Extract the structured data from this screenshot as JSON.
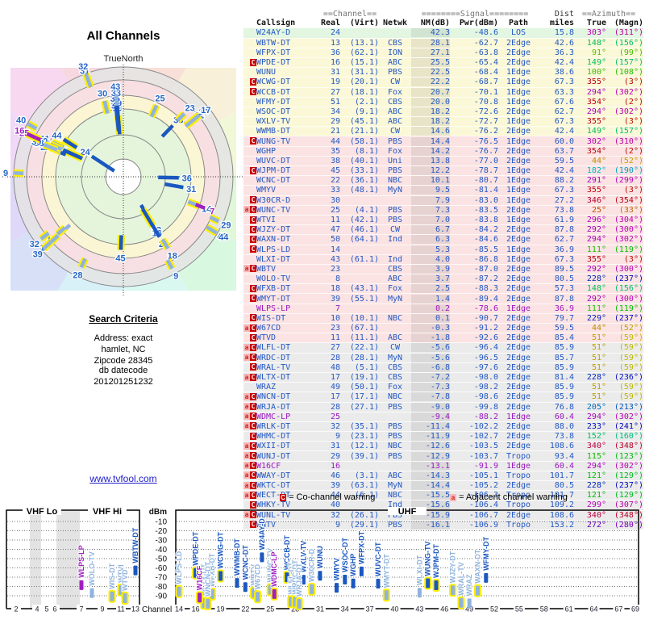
{
  "ui": {
    "polar_title": "All Channels",
    "north_label": "TrueNorth",
    "search": {
      "heading": "Search Criteria",
      "line1": "Address: exact",
      "line2": "hamlet, NC",
      "line3": "Zipcode 28345",
      "db_label": "db datecode",
      "db_value": "201201251232"
    },
    "link_text": "www.tvfool.com",
    "legend": {
      "co_badge": "C",
      "co_text": "= Co-channel warning",
      "adj_badge": "a",
      "adj_text": "= Adjacent channel warning"
    },
    "table_header": {
      "group_channel": "==Channel==",
      "group_signal": "========Signal========",
      "group_dist": "Dist",
      "group_azimuth": "==Azimuth==",
      "callsign": "Callsign",
      "real": "Real",
      "virt": "(Virt)",
      "netwk": "Netwk",
      "nm": "NM(dB)",
      "pwr": "Pwr(dBm)",
      "path": "Path",
      "miles": "miles",
      "true": "True",
      "magn": "(Magn)"
    },
    "colors": {
      "digital_text": "#2358c4",
      "analog_text": "#9a17c0",
      "zone_green": "#e2f6e2",
      "zone_yellow": "#fbf8d8",
      "zone_pink": "#fbe3e3",
      "zone_gray": "#ebebeb",
      "bar_strong": "#1a57c0",
      "bar_weak": "#8fb3dd",
      "bar_analog": "#a020c0",
      "warning_halo": "#ffee00",
      "badge_red": "#cc0000"
    }
  },
  "chart_data": {
    "type": "table",
    "title": "All Channels",
    "description": "TV reception report: polar plot of all channels, station table, and VHF/UHF signal-level charts",
    "columns": [
      "Callsign",
      "RealCh",
      "VirtCh",
      "Netwk",
      "NM_dB",
      "Pwr_dBm",
      "Path",
      "Dist_miles",
      "Azimuth_True_deg",
      "Azimuth_Magn_deg",
      "Warning",
      "Zone",
      "Analog"
    ],
    "rows": [
      [
        "W24AY-D",
        "24",
        "",
        "",
        "42.3",
        "-48.6",
        "LOS",
        "15.8",
        303,
        311,
        "",
        "green",
        false
      ],
      [
        "WBTW-DT",
        "13",
        "13.1",
        "CBS",
        "28.1",
        "-62.7",
        "2Edge",
        "42.6",
        148,
        156,
        "",
        "yellow",
        false
      ],
      [
        "WFPX-DT",
        "36",
        "62.1",
        "ION",
        "27.1",
        "-63.8",
        "2Edge",
        "36.3",
        91,
        99,
        "",
        "yellow",
        false
      ],
      [
        "WPDE-DT",
        "16",
        "15.1",
        "ABC",
        "25.5",
        "-65.4",
        "2Edge",
        "42.4",
        149,
        157,
        "C",
        "yellow",
        false
      ],
      [
        "WUNU",
        "31",
        "31.1",
        "PBS",
        "22.5",
        "-68.4",
        "1Edge",
        "38.6",
        100,
        108,
        "",
        "yellow",
        false
      ],
      [
        "WCWG-DT",
        "19",
        "20.1",
        "CW",
        "22.2",
        "-68.7",
        "1Edge",
        "67.3",
        355,
        3,
        "C",
        "yellow",
        false
      ],
      [
        "WCCB-DT",
        "27",
        "18.1",
        "Fox",
        "20.7",
        "-70.1",
        "1Edge",
        "63.3",
        294,
        302,
        "C",
        "yellow",
        false
      ],
      [
        "WFMY-DT",
        "51",
        "2.1",
        "CBS",
        "20.0",
        "-70.8",
        "1Edge",
        "67.6",
        354,
        2,
        "",
        "yellow",
        false
      ],
      [
        "WSOC-DT",
        "34",
        "9.1",
        "ABC",
        "18.2",
        "-72.6",
        "2Edge",
        "62.7",
        294,
        302,
        "",
        "yellow",
        false
      ],
      [
        "WXLV-TV",
        "29",
        "45.1",
        "ABC",
        "18.2",
        "-72.7",
        "1Edge",
        "67.3",
        355,
        3,
        "",
        "yellow",
        false
      ],
      [
        "WWMB-DT",
        "21",
        "21.1",
        "CW",
        "14.6",
        "-76.2",
        "2Edge",
        "42.4",
        149,
        157,
        "",
        "yellow",
        false
      ],
      [
        "WUNG-TV",
        "44",
        "58.1",
        "PBS",
        "14.4",
        "-76.5",
        "1Edge",
        "60.0",
        302,
        310,
        "C",
        "pink",
        false
      ],
      [
        "WGHP",
        "35",
        "8.1",
        "Fox",
        "14.2",
        "-76.7",
        "2Edge",
        "63.7",
        354,
        2,
        "",
        "pink",
        false
      ],
      [
        "WUVC-DT",
        "38",
        "40.1",
        "Uni",
        "13.8",
        "-77.0",
        "2Edge",
        "59.5",
        44,
        52,
        "",
        "pink",
        false
      ],
      [
        "WJPM-DT",
        "45",
        "33.1",
        "PBS",
        "12.2",
        "-78.7",
        "1Edge",
        "42.4",
        182,
        190,
        "C",
        "pink",
        false
      ],
      [
        "WCNC-DT",
        "22",
        "36.1",
        "NBC",
        "10.1",
        "-80.7",
        "1Edge",
        "88.2",
        291,
        299,
        "",
        "pink",
        false
      ],
      [
        "WMYV",
        "33",
        "48.1",
        "MyN",
        "9.5",
        "-81.4",
        "1Edge",
        "67.3",
        355,
        3,
        "",
        "pink",
        false
      ],
      [
        "W30CR-D",
        "30",
        "",
        "",
        "7.9",
        "-83.0",
        "1Edge",
        "27.2",
        346,
        354,
        "C",
        "pink",
        false
      ],
      [
        "WUNC-TV",
        "25",
        "4.1",
        "PBS",
        "7.3",
        "-83.5",
        "2Edge",
        "73.8",
        25,
        33,
        "aC",
        "pink",
        false
      ],
      [
        "WTVI",
        "11",
        "42.1",
        "PBS",
        "7.0",
        "-83.8",
        "1Edge",
        "61.9",
        296,
        304,
        "C",
        "pink",
        false
      ],
      [
        "WJZY-DT",
        "47",
        "46.1",
        "CW",
        "6.7",
        "-84.2",
        "2Edge",
        "87.8",
        292,
        300,
        "C",
        "pink",
        false
      ],
      [
        "WAXN-DT",
        "50",
        "64.1",
        "Ind",
        "6.3",
        "-84.6",
        "2Edge",
        "62.7",
        294,
        302,
        "C",
        "pink",
        false
      ],
      [
        "WLPS-LD",
        "14",
        "",
        "",
        "5.3",
        "-85.5",
        "1Edge",
        "36.9",
        111,
        119,
        "C",
        "pink",
        false
      ],
      [
        "WLXI-DT",
        "43",
        "61.1",
        "Ind",
        "4.0",
        "-86.8",
        "1Edge",
        "67.3",
        355,
        3,
        "",
        "pink",
        false
      ],
      [
        "WBTV",
        "23",
        "",
        "CBS",
        "3.9",
        "-87.0",
        "2Edge",
        "89.5",
        292,
        300,
        "aC",
        "pink",
        false
      ],
      [
        "WOLO-TV",
        "8",
        "",
        "ABC",
        "3.7",
        "-87.2",
        "2Edge",
        "80.5",
        228,
        237,
        "",
        "pink",
        false
      ],
      [
        "WFXB-DT",
        "18",
        "43.1",
        "Fox",
        "2.5",
        "-88.3",
        "2Edge",
        "57.3",
        148,
        156,
        "C",
        "pink",
        false
      ],
      [
        "WMYT-DT",
        "39",
        "55.1",
        "MyN",
        "1.4",
        "-89.4",
        "2Edge",
        "87.8",
        292,
        300,
        "C",
        "pink",
        false
      ],
      [
        "WLPS-LP",
        "7",
        "",
        "",
        "0.2",
        "-78.6",
        "1Edge",
        "36.9",
        111,
        119,
        "",
        "pink",
        true
      ],
      [
        "WIS-DT",
        "10",
        "10.1",
        "NBC",
        "0.1",
        "-90.7",
        "2Edge",
        "79.7",
        229,
        237,
        "C",
        "pink",
        false
      ],
      [
        "W67CD",
        "23",
        "67.1",
        "",
        "-0.3",
        "-91.2",
        "2Edge",
        "59.5",
        44,
        52,
        "aC",
        "pink",
        false
      ],
      [
        "WTVD",
        "11",
        "11.1",
        "ABC",
        "-1.8",
        "-92.6",
        "2Edge",
        "85.4",
        51,
        59,
        "C",
        "pink",
        false
      ],
      [
        "WLFL-DT",
        "27",
        "22.1",
        "CW",
        "-5.6",
        "-96.4",
        "2Edge",
        "85.9",
        51,
        59,
        "aC",
        "gray",
        false
      ],
      [
        "WRDC-DT",
        "28",
        "28.1",
        "MyN",
        "-5.6",
        "-96.5",
        "2Edge",
        "85.7",
        51,
        59,
        "aC",
        "gray",
        false
      ],
      [
        "WRAL-TV",
        "48",
        "5.1",
        "CBS",
        "-6.8",
        "-97.6",
        "2Edge",
        "85.9",
        51,
        59,
        "C",
        "gray",
        false
      ],
      [
        "WLTX-DT",
        "17",
        "19.1",
        "CBS",
        "-7.2",
        "-98.0",
        "2Edge",
        "81.4",
        228,
        236,
        "aC",
        "gray",
        false
      ],
      [
        "WRAZ",
        "49",
        "50.1",
        "Fox",
        "-7.3",
        "-98.2",
        "2Edge",
        "85.9",
        51,
        59,
        "",
        "gray",
        false
      ],
      [
        "WNCN-DT",
        "17",
        "17.1",
        "NBC",
        "-7.8",
        "-98.6",
        "2Edge",
        "85.9",
        51,
        59,
        "aC",
        "gray",
        false
      ],
      [
        "WRJA-DT",
        "28",
        "27.1",
        "PBS",
        "-9.0",
        "-99.8",
        "2Edge",
        "76.8",
        205,
        213,
        "aC",
        "gray",
        false
      ],
      [
        "WDMC-LP",
        "25",
        "",
        "",
        "-9.4",
        "-88.2",
        "1Edge",
        "60.4",
        294,
        302,
        "aC",
        "gray",
        true
      ],
      [
        "WRLK-DT",
        "32",
        "35.1",
        "PBS",
        "-11.4",
        "-102.2",
        "2Edge",
        "88.0",
        233,
        241,
        "aC",
        "gray",
        false
      ],
      [
        "WHMC-DT",
        "9",
        "23.1",
        "PBS",
        "-11.9",
        "-102.7",
        "2Edge",
        "73.8",
        152,
        160,
        "C",
        "gray",
        false
      ],
      [
        "WXII-DT",
        "31",
        "12.1",
        "NBC",
        "-12.6",
        "-103.5",
        "2Edge",
        "108.6",
        340,
        348,
        "aC",
        "gray",
        false
      ],
      [
        "WUNJ-DT",
        "29",
        "39.1",
        "PBS",
        "-12.9",
        "-103.7",
        "Tropo",
        "93.4",
        115,
        123,
        "aC",
        "gray",
        false
      ],
      [
        "W16CF",
        "16",
        "",
        "",
        "-13.1",
        "-91.9",
        "1Edge",
        "60.4",
        294,
        302,
        "aC",
        "gray",
        true
      ],
      [
        "WWAY-DT",
        "46",
        "3.1",
        "ABC",
        "-14.3",
        "-105.1",
        "Tropo",
        "101.7",
        121,
        129,
        "aC",
        "gray",
        false
      ],
      [
        "WKTC-DT",
        "39",
        "63.1",
        "MyN",
        "-14.4",
        "-105.2",
        "2Edge",
        "80.5",
        228,
        237,
        "aC",
        "gray",
        false
      ],
      [
        "WECT-DT",
        "44",
        "6.1",
        "NBC",
        "-15.5",
        "-106.3",
        "Tropo",
        "101.7",
        121,
        129,
        "aC",
        "gray",
        false
      ],
      [
        "WHKY-TV",
        "40",
        "",
        "Ind",
        "-15.6",
        "-106.4",
        "Tropo",
        "109.2",
        299,
        307,
        "C",
        "gray",
        false
      ],
      [
        "WUNL-TV",
        "32",
        "26.1",
        "PBS",
        "-15.9",
        "-106.7",
        "2Edge",
        "108.6",
        340,
        348,
        "aC",
        "gray",
        false
      ],
      [
        "WNTV",
        "9",
        "29.1",
        "PBS",
        "-16.1",
        "-106.9",
        "Tropo",
        "153.2",
        272,
        280,
        "C",
        "gray",
        false
      ]
    ],
    "signal_chart": {
      "bands": [
        "VHF Lo",
        "VHF Hi",
        "UHF"
      ],
      "ylabel": "dBm",
      "xlabel": "Channel",
      "dbm_ticks": [
        -10,
        -20,
        -30,
        -40,
        -50,
        -60,
        -70,
        -80,
        -90
      ],
      "vhf_ticks": [
        2,
        4,
        5,
        6,
        7,
        9,
        11,
        13
      ],
      "uhf_ticks": [
        14,
        16,
        19,
        22,
        25,
        28,
        31,
        34,
        37,
        40,
        43,
        46,
        49,
        52,
        55,
        58,
        61,
        64,
        67,
        69
      ],
      "ylim": [
        -10,
        -100
      ]
    }
  }
}
